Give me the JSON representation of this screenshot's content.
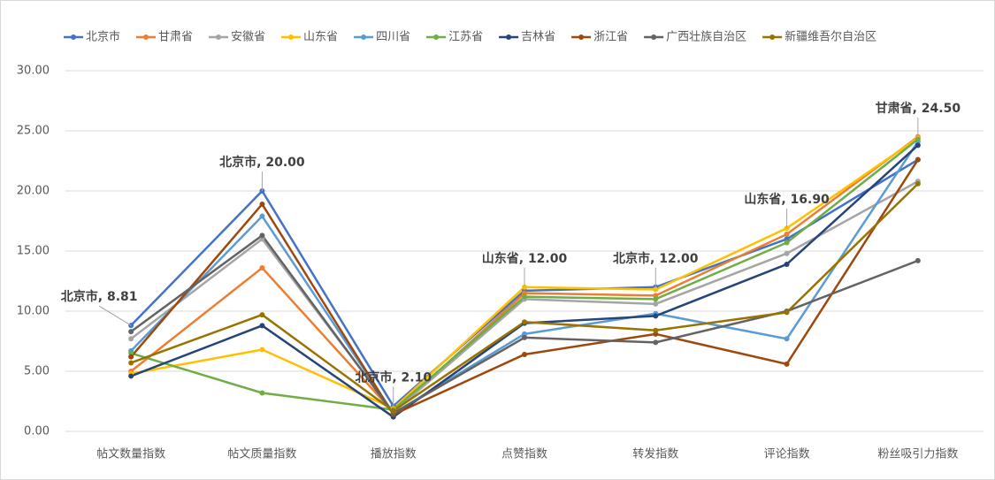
{
  "chart_data": {
    "type": "line",
    "categories": [
      "帖文数量指数",
      "帖文质量指数",
      "播放指数",
      "点赞指数",
      "转发指数",
      "评论指数",
      "粉丝吸引力指数"
    ],
    "ylim": [
      0,
      30
    ],
    "yticks": [
      {
        "value": 0,
        "label": "0.00"
      },
      {
        "value": 5,
        "label": "5.00"
      },
      {
        "value": 10,
        "label": "10.00"
      },
      {
        "value": 15,
        "label": "15.00"
      },
      {
        "value": 20,
        "label": "20.00"
      },
      {
        "value": 25,
        "label": "25.00"
      },
      {
        "value": 30,
        "label": "30.00"
      }
    ],
    "grid": true,
    "legend": "top",
    "series": [
      {
        "name": "北京市",
        "color": "#4472c4",
        "values": [
          8.81,
          20.0,
          2.1,
          11.7,
          12.0,
          16.0,
          22.6
        ],
        "value_labels": [
          "北京市, 8.81",
          "北京市, 20.00",
          "北京市, 2.10",
          null,
          "北京市, 12.00",
          null,
          null
        ]
      },
      {
        "name": "甘肃省",
        "color": "#ed7d31",
        "values": [
          5.0,
          13.6,
          1.6,
          11.5,
          11.3,
          16.4,
          24.5
        ],
        "value_labels": [
          null,
          null,
          null,
          null,
          null,
          null,
          "甘肃省, 24.50"
        ]
      },
      {
        "name": "安徽省",
        "color": "#a5a5a5",
        "values": [
          7.7,
          16.0,
          1.6,
          11.0,
          10.6,
          14.8,
          20.8
        ]
      },
      {
        "name": "山东省",
        "color": "#ffc000",
        "values": [
          4.8,
          6.8,
          1.9,
          12.0,
          11.8,
          16.9,
          24.4
        ],
        "value_labels": [
          null,
          null,
          null,
          "山东省, 12.00",
          null,
          "山东省, 16.90",
          null
        ]
      },
      {
        "name": "四川省",
        "color": "#5b9bd5",
        "values": [
          6.7,
          17.9,
          1.5,
          8.1,
          9.8,
          7.7,
          24.1
        ]
      },
      {
        "name": "江苏省",
        "color": "#70ad47",
        "values": [
          6.5,
          3.2,
          1.8,
          11.2,
          11.0,
          15.7,
          24.3
        ]
      },
      {
        "name": "吉林省",
        "color": "#264478",
        "values": [
          4.6,
          8.8,
          1.2,
          9.0,
          9.6,
          13.9,
          23.8
        ]
      },
      {
        "name": "浙江省",
        "color": "#9e480e",
        "values": [
          6.2,
          18.9,
          1.4,
          6.4,
          8.1,
          5.6,
          22.6
        ]
      },
      {
        "name": "广西壮族自治区",
        "color": "#636363",
        "values": [
          8.3,
          16.3,
          1.5,
          7.8,
          7.4,
          10.0,
          14.2
        ]
      },
      {
        "name": "新疆维吾尔自治区",
        "color": "#997300",
        "values": [
          5.7,
          9.7,
          1.7,
          9.1,
          8.4,
          9.9,
          20.6
        ]
      }
    ]
  }
}
